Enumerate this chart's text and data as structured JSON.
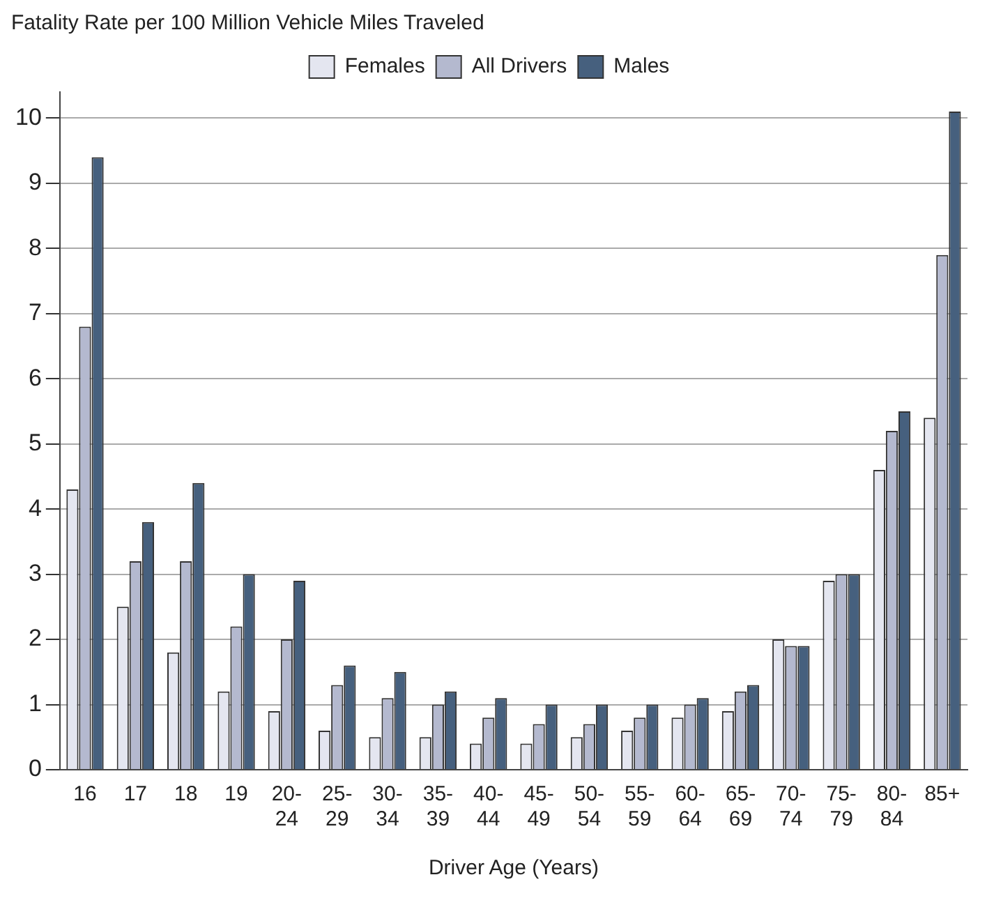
{
  "chart_data": {
    "type": "bar",
    "title": "Fatality Rate per 100 Million Vehicle Miles Traveled",
    "xlabel": "Driver Age (Years)",
    "categories": [
      "16",
      "17",
      "18",
      "19",
      "20-24",
      "25-29",
      "30-34",
      "35-39",
      "40-44",
      "45-49",
      "50-54",
      "55-59",
      "60-64",
      "65-69",
      "70-74",
      "75-79",
      "80-84",
      "85+"
    ],
    "series": [
      {
        "name": "Females",
        "color": "#e4e6f0",
        "values": [
          4.3,
          2.5,
          1.8,
          1.2,
          0.9,
          0.6,
          0.5,
          0.5,
          0.4,
          0.4,
          0.5,
          0.6,
          0.8,
          0.9,
          2.0,
          2.9,
          4.6,
          5.4
        ]
      },
      {
        "name": "All Drivers",
        "color": "#b4b9cf",
        "values": [
          6.8,
          3.2,
          3.2,
          2.2,
          2.0,
          1.3,
          1.1,
          1.0,
          0.8,
          0.7,
          0.7,
          0.8,
          1.0,
          1.2,
          1.9,
          3.0,
          5.2,
          7.9
        ]
      },
      {
        "name": "Males",
        "color": "#46607e",
        "values": [
          9.4,
          3.8,
          4.4,
          3.0,
          2.9,
          1.6,
          1.5,
          1.2,
          1.1,
          1.0,
          1.0,
          1.0,
          1.1,
          1.3,
          1.9,
          3.0,
          5.5,
          10.1
        ]
      }
    ],
    "ylim": [
      0,
      10.4
    ],
    "yticks": [
      0,
      1,
      2,
      3,
      4,
      5,
      6,
      7,
      8,
      9,
      10
    ],
    "grid": "y",
    "legend": "top"
  }
}
